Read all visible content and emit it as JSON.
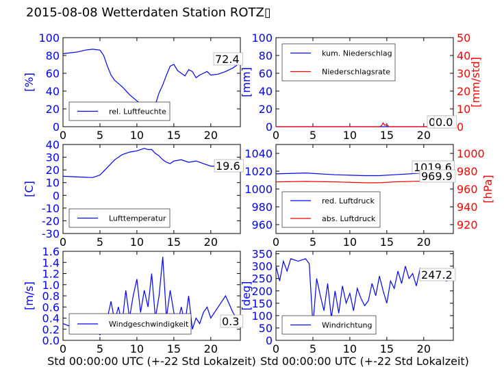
{
  "title": "2015-08-08 Wetterdaten Station ROTZ▯",
  "chart_data": [
    {
      "type": "line",
      "id": "p1",
      "ylabel": "[%]",
      "ylim": [
        0,
        100
      ],
      "yticks": [
        0,
        20,
        40,
        60,
        80,
        100
      ],
      "xlim": [
        0,
        24
      ],
      "xticks": [
        0,
        5,
        10,
        15,
        20
      ],
      "legend_placement": "lower-left",
      "series": [
        {
          "name": "rel. Luftfeuchte",
          "color": "#0000ff",
          "legend": true,
          "x": [
            0,
            1,
            2,
            3,
            4,
            5,
            5.5,
            6,
            6.5,
            7,
            8,
            9,
            10,
            10.5,
            11,
            11.5,
            12,
            12.5,
            13,
            13.5,
            14,
            14.5,
            15,
            15.5,
            16,
            16.5,
            17,
            17.5,
            18,
            18.5,
            19,
            19.5,
            20,
            21,
            22,
            23,
            24
          ],
          "y": [
            82,
            83,
            84,
            86,
            87,
            86,
            80,
            68,
            58,
            52,
            45,
            36,
            29,
            26,
            24,
            22,
            21,
            25,
            38,
            47,
            58,
            68,
            70,
            63,
            60,
            57,
            64,
            62,
            55,
            58,
            60,
            62,
            58,
            59,
            62,
            66,
            72
          ]
        }
      ],
      "annotations": [
        "72.4"
      ]
    },
    {
      "type": "line",
      "id": "p2",
      "ylabel": "[mm]",
      "ylabel2": "[mm/std]",
      "ylim": [
        0,
        100
      ],
      "yticks": [
        0,
        20,
        40,
        60,
        80,
        100
      ],
      "ylim2": [
        0,
        50
      ],
      "yticks2": [
        0,
        10,
        20,
        30,
        40,
        50
      ],
      "xlim": [
        0,
        24
      ],
      "xticks": [
        0,
        5,
        10,
        15,
        20
      ],
      "legend_placement": "upper-left",
      "series": [
        {
          "name": "kum. Niederschlag",
          "color": "#0000ff",
          "axis": "left",
          "legend": true,
          "x": [
            0,
            24
          ],
          "y": [
            0,
            0
          ]
        },
        {
          "name": "Niederschlagsrate",
          "color": "#ff0000",
          "axis": "right",
          "legend": true,
          "x": [
            0,
            14,
            14.3,
            14.5,
            14.7,
            15,
            15.3,
            24
          ],
          "y": [
            0,
            0,
            0.6,
            2.2,
            0.8,
            1.2,
            0,
            0
          ]
        }
      ],
      "annotations": [
        "0.0",
        "0.0"
      ]
    },
    {
      "type": "line",
      "id": "p3",
      "ylabel": "[C]",
      "ylim": [
        -30,
        40
      ],
      "yticks": [
        -30,
        -20,
        -10,
        0,
        10,
        20,
        30,
        40
      ],
      "xlim": [
        0,
        24
      ],
      "xticks": [
        0,
        5,
        10,
        15,
        20
      ],
      "legend_placement": "lower-left",
      "series": [
        {
          "name": "Lufttemperatur",
          "color": "#0000ff",
          "legend": true,
          "x": [
            0,
            2,
            4,
            5,
            6,
            7,
            8,
            9,
            10,
            11,
            11.5,
            12,
            12.5,
            13,
            13.5,
            14,
            14.5,
            15,
            16,
            17,
            18,
            19,
            20,
            21,
            22,
            23,
            24
          ],
          "y": [
            15,
            14.5,
            14,
            16,
            22,
            28,
            32,
            34,
            35,
            37,
            36,
            36,
            33,
            31,
            28,
            26,
            25,
            27,
            28,
            26,
            27,
            25,
            23,
            23,
            21,
            20,
            19.6
          ]
        }
      ],
      "annotations": [
        "19.6"
      ]
    },
    {
      "type": "line",
      "id": "p4",
      "ylabel2": "[hPa]",
      "ylim": [
        950,
        1050
      ],
      "yticks": [
        960,
        980,
        1000,
        1020,
        1040
      ],
      "ylim2": [
        910,
        1010
      ],
      "yticks2": [
        920,
        940,
        960,
        980,
        1000
      ],
      "xlim": [
        0,
        24
      ],
      "xticks": [
        0,
        5,
        10,
        15,
        20
      ],
      "legend_placement": "lower-left",
      "series": [
        {
          "name": "red. Luftdruck",
          "color": "#0000ff",
          "axis": "left",
          "legend": true,
          "x": [
            0,
            4,
            8,
            12,
            14,
            16,
            20,
            24
          ],
          "y": [
            1017,
            1018,
            1016,
            1015,
            1015,
            1016,
            1018,
            1019.6
          ]
        },
        {
          "name": "abs. Luftdruck",
          "color": "#ff0000",
          "axis": "left",
          "legend": true,
          "x": [
            0,
            4,
            8,
            12,
            14,
            16,
            20,
            24
          ],
          "y": [
            1008,
            1008.5,
            1008,
            1007,
            1007,
            1008,
            1009,
            1010
          ]
        }
      ],
      "annotations": [
        "1019.6",
        "969.9"
      ]
    },
    {
      "type": "line",
      "id": "p5",
      "ylabel": "[m/s]",
      "ylim": [
        0,
        1.6
      ],
      "yticks": [
        0.0,
        0.2,
        0.4,
        0.6,
        0.8,
        1.0,
        1.2,
        1.4,
        1.6
      ],
      "xlim": [
        0,
        24
      ],
      "xticks": [
        0,
        5,
        10,
        15,
        20
      ],
      "xlabel": "Std 00:00:00 UTC (+-22 Std Lokalzeit)",
      "legend_placement": "lower-left",
      "series": [
        {
          "name": "Windgeschwindigkeit",
          "color": "#0000ff",
          "legend": true,
          "x": [
            0,
            1,
            2,
            3,
            4,
            5,
            5.5,
            6,
            6.5,
            7,
            7.5,
            8,
            8.5,
            9,
            9.5,
            10,
            10.5,
            11,
            11.5,
            12,
            12.5,
            13,
            13.5,
            14,
            14.5,
            15,
            15.5,
            16,
            16.5,
            17,
            17.5,
            18,
            18.5,
            19,
            19.5,
            20,
            21,
            22,
            23,
            24
          ],
          "y": [
            0.3,
            0.25,
            0.3,
            0.2,
            0.25,
            0.1,
            0.2,
            0.4,
            0.7,
            0.35,
            0.6,
            0.3,
            0.9,
            0.4,
            0.8,
            1.1,
            0.5,
            0.9,
            0.6,
            1.2,
            0.4,
            0.8,
            1.5,
            0.4,
            0.9,
            0.5,
            0.3,
            0.6,
            0.3,
            0.8,
            0.2,
            0.4,
            0.3,
            0.5,
            0.6,
            0.4,
            0.6,
            0.8,
            0.5,
            0.3
          ]
        }
      ],
      "annotations": [
        "0.3"
      ]
    },
    {
      "type": "line",
      "id": "p6",
      "ylabel": "[deg]",
      "ylim": [
        0,
        360
      ],
      "yticks": [
        0,
        50,
        100,
        150,
        200,
        250,
        300,
        350
      ],
      "xlim": [
        0,
        24
      ],
      "xticks": [
        0,
        5,
        10,
        15,
        20
      ],
      "xlabel": "Std 00:00:00 UTC (+-22 Std Lokalzeit)",
      "legend_placement": "lower-left",
      "series": [
        {
          "name": "Windrichtung",
          "color": "#0000ff",
          "legend": true,
          "x": [
            0,
            0.5,
            1,
            1.5,
            2,
            3,
            4,
            4.5,
            5,
            5.5,
            6,
            6.5,
            7,
            7.5,
            8,
            8.5,
            9,
            9.5,
            10,
            10.5,
            11,
            11.5,
            12,
            12.5,
            13,
            13.5,
            14,
            14.5,
            15,
            15.5,
            16,
            16.5,
            17,
            17.5,
            18,
            18.5,
            19,
            19.5,
            20,
            21,
            22,
            23,
            24
          ],
          "y": [
            300,
            240,
            320,
            280,
            330,
            320,
            330,
            310,
            60,
            250,
            180,
            120,
            230,
            90,
            200,
            110,
            220,
            150,
            190,
            120,
            210,
            170,
            140,
            160,
            230,
            180,
            260,
            200,
            150,
            240,
            210,
            280,
            230,
            300,
            250,
            270,
            220,
            290,
            260,
            250,
            270,
            240,
            247.2
          ]
        }
      ],
      "annotations": [
        "247.2"
      ]
    }
  ]
}
